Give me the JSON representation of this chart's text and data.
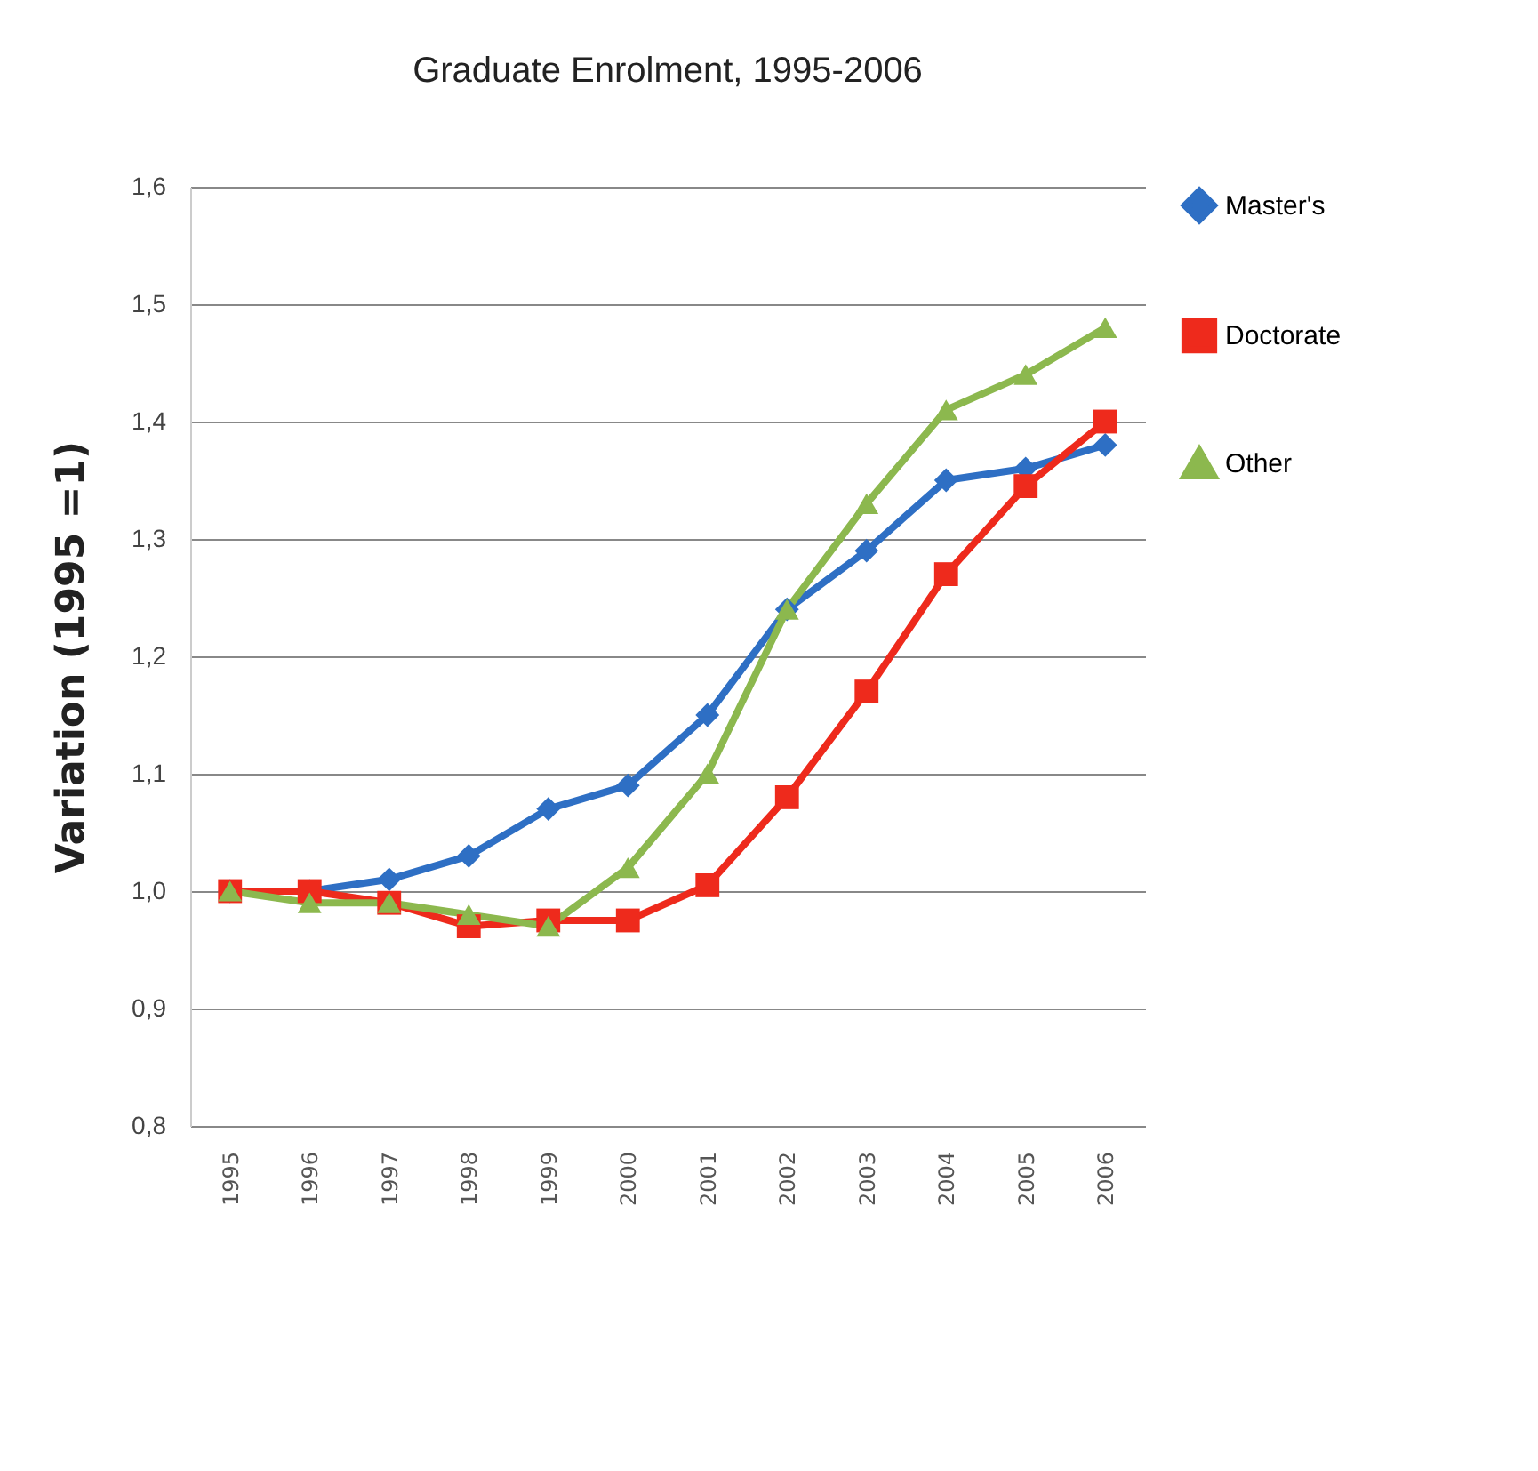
{
  "chart_data": {
    "type": "line",
    "title": "Graduate Enrolment, 1995-2006",
    "ylabel": "Variation (1995 =1)",
    "categories": [
      "1995",
      "1996",
      "1997",
      "1998",
      "1999",
      "2000",
      "2001",
      "2002",
      "2003",
      "2004",
      "2005",
      "2006"
    ],
    "series": [
      {
        "name": "Master's",
        "color": "#2e6fc4",
        "marker": "diamond",
        "values": [
          1.0,
          1.0,
          1.01,
          1.03,
          1.07,
          1.09,
          1.15,
          1.24,
          1.29,
          1.35,
          1.36,
          1.38
        ]
      },
      {
        "name": "Doctorate",
        "color": "#ee2a1c",
        "marker": "square",
        "values": [
          1.0,
          1.0,
          0.99,
          0.97,
          0.975,
          0.975,
          1.005,
          1.08,
          1.17,
          1.27,
          1.345,
          1.4
        ]
      },
      {
        "name": "Other",
        "color": "#8cb84e",
        "marker": "triangle",
        "values": [
          1.0,
          0.99,
          0.99,
          0.98,
          0.97,
          1.02,
          1.1,
          1.24,
          1.33,
          1.41,
          1.44,
          1.48
        ]
      }
    ],
    "ylim": [
      0.8,
      1.6
    ],
    "yticks": [
      {
        "value": 0.8,
        "label": "0,8"
      },
      {
        "value": 0.9,
        "label": "0,9"
      },
      {
        "value": 1.0,
        "label": "1,0"
      },
      {
        "value": 1.1,
        "label": "1,1"
      },
      {
        "value": 1.2,
        "label": "1,2"
      },
      {
        "value": 1.3,
        "label": "1,3"
      },
      {
        "value": 1.4,
        "label": "1,4"
      },
      {
        "value": 1.5,
        "label": "1,5"
      },
      {
        "value": 1.6,
        "label": "1,6"
      }
    ],
    "grid": "y",
    "legend": "right",
    "line_style": "solid"
  }
}
